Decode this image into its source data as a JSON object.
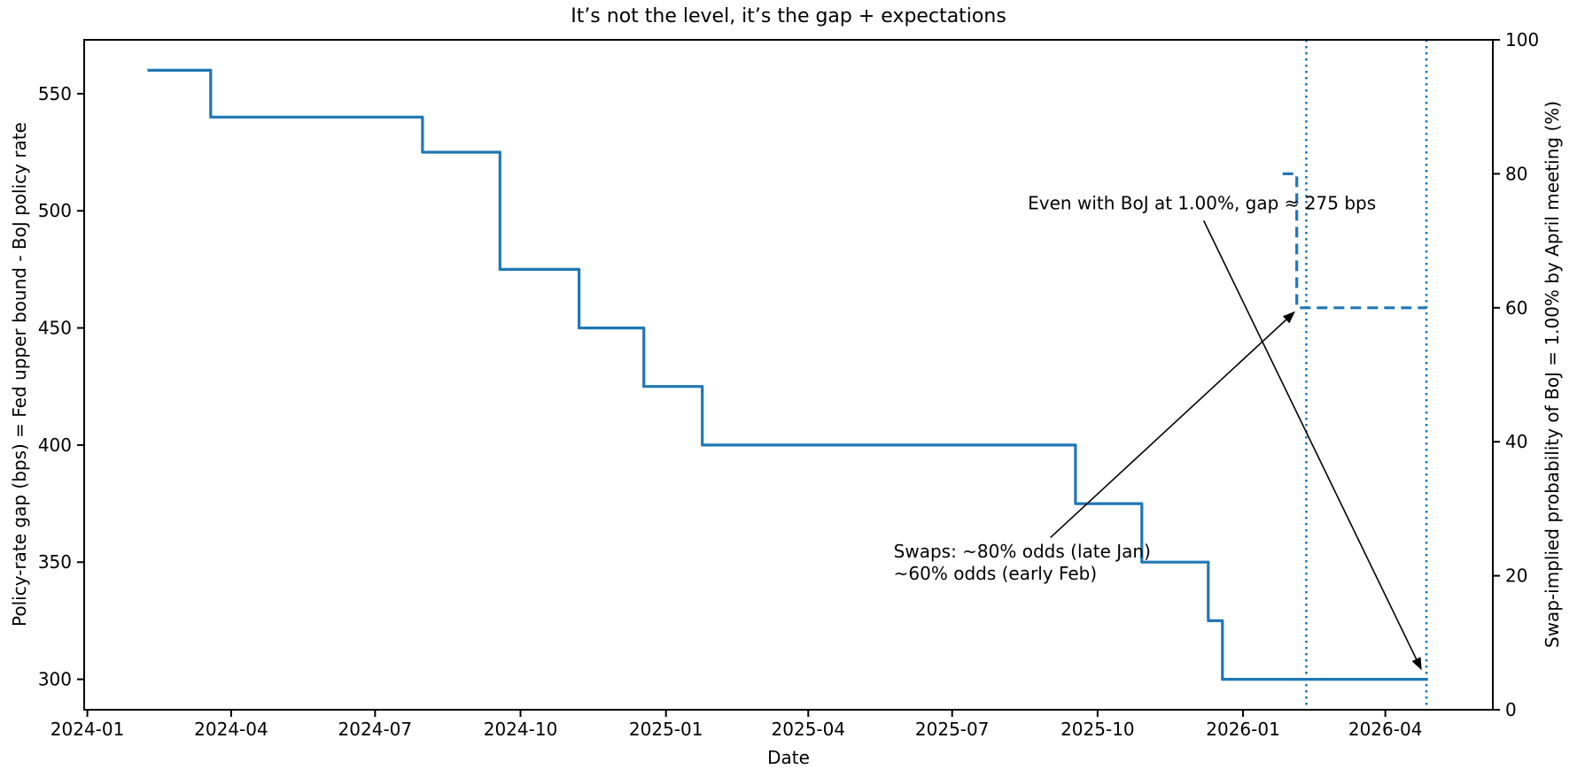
{
  "chart_data": {
    "type": "line",
    "title": "It’s not the level, it’s the gap + expectations",
    "xlabel": "Date",
    "ylabel_left": "Policy-rate gap (bps) = Fed upper bound - BoJ policy rate",
    "ylabel_right": "Swap-implied probability of BoJ = 1.00% by April meeting (%)",
    "x_ticks": [
      "2024-01",
      "2024-04",
      "2024-07",
      "2024-10",
      "2025-01",
      "2025-04",
      "2025-07",
      "2025-10",
      "2026-01",
      "2026-04"
    ],
    "y_ticks_left": [
      300,
      350,
      400,
      450,
      500,
      550
    ],
    "y_ticks_right": [
      0,
      20,
      40,
      60,
      80,
      100
    ],
    "xlim": [
      "2023-12-30",
      "2026-06-08"
    ],
    "ylim_left": [
      287,
      573
    ],
    "ylim_right": [
      0,
      100
    ],
    "grid": false,
    "legend": "none",
    "line_color": "#1f77b4",
    "series": [
      {
        "name": "policy-rate-gap-bps",
        "axis": "left",
        "style": "solid",
        "step": true,
        "points": [
          [
            "2024-02-08",
            560
          ],
          [
            "2024-03-19",
            540
          ],
          [
            "2024-07-31",
            525
          ],
          [
            "2024-09-18",
            475
          ],
          [
            "2024-11-07",
            450
          ],
          [
            "2024-12-18",
            425
          ],
          [
            "2025-01-24",
            400
          ],
          [
            "2025-09-17",
            375
          ],
          [
            "2025-10-29",
            350
          ],
          [
            "2025-12-10",
            325
          ],
          [
            "2025-12-19",
            300
          ],
          [
            "2026-04-28",
            300
          ]
        ]
      },
      {
        "name": "swap-implied-probability-pct",
        "axis": "right",
        "style": "dashed",
        "step": true,
        "points": [
          [
            "2026-01-26",
            80
          ],
          [
            "2026-02-04",
            80
          ],
          [
            "2026-02-04",
            60
          ],
          [
            "2026-04-27",
            60
          ]
        ]
      }
    ],
    "vlines": [
      {
        "date": "2026-02-10",
        "style": "dotted"
      },
      {
        "date": "2026-04-27",
        "style": "dotted"
      }
    ],
    "annotations": [
      {
        "text": "Even with BoJ at 1.00%, gap ≈ 275 bps",
        "anchor": "center",
        "text_at": {
          "date": "2025-12-06",
          "y_axis": "left",
          "y": 503
        },
        "arrow_to": {
          "date": "2026-04-24",
          "y_axis": "left",
          "y": 305
        }
      },
      {
        "text": "Swaps: ~80% odds (late Jan)\n~60% odds (early Feb)",
        "anchor": "top-left",
        "text_at": {
          "date": "2025-05-25",
          "y_axis": "left",
          "y": 359
        },
        "arrow_to": {
          "date": "2026-02-03",
          "y_axis": "right",
          "y": 60
        }
      }
    ]
  }
}
